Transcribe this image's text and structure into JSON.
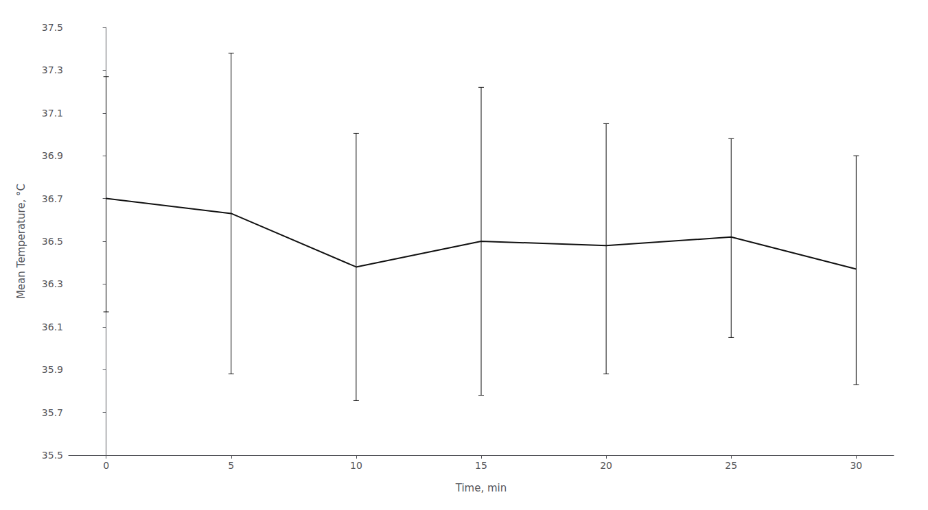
{
  "chart_data": {
    "type": "line",
    "x": [
      0,
      5,
      10,
      15,
      20,
      25,
      30
    ],
    "values": [
      36.7,
      36.63,
      36.38,
      36.5,
      36.48,
      36.52,
      36.37
    ],
    "yerr_lower": [
      0.53,
      0.75,
      0.625,
      0.72,
      0.6,
      0.47,
      0.54
    ],
    "yerr_upper": [
      0.57,
      0.75,
      0.625,
      0.72,
      0.57,
      0.46,
      0.53
    ],
    "color": "#111111",
    "xlabel": "Time, min",
    "ylabel": "Mean Temperature, °C",
    "xlim": [
      -1.5,
      31.5
    ],
    "ylim": [
      35.5,
      37.5
    ],
    "xticks": [
      0,
      5,
      10,
      15,
      20,
      25,
      30
    ],
    "yticks": [
      35.5,
      35.7,
      35.9,
      36.1,
      36.3,
      36.5,
      36.7,
      36.9,
      37.1,
      37.3,
      37.5
    ],
    "grid": false
  }
}
